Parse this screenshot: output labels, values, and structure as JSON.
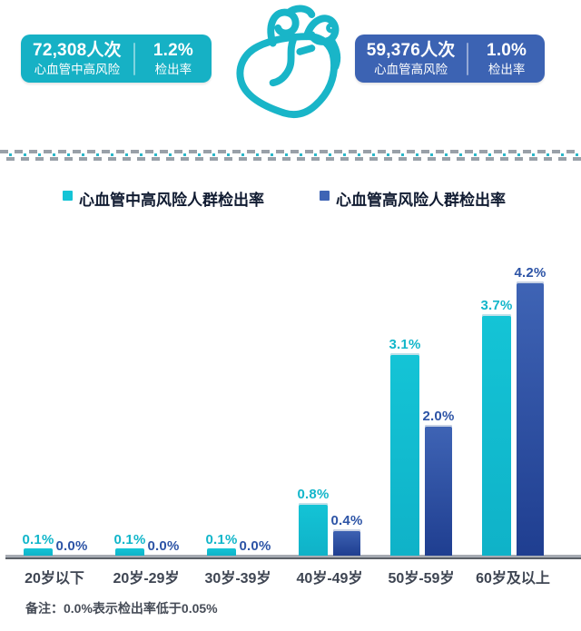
{
  "header": {
    "stats": [
      {
        "count": "72,308人次",
        "label": "心血管中高风险",
        "rate": "1.2%",
        "rate_label": "检出率",
        "bg_color": "#16b1c5"
      },
      {
        "count": "59,376人次",
        "label": "心血管高风险",
        "rate": "1.0%",
        "rate_label": "检出率",
        "bg_color": "#3c63b3"
      }
    ],
    "heart_icon": "anatomical-heart-outline",
    "heart_color": "#19b5c8"
  },
  "legend": {
    "items": [
      {
        "label": "心血管中高风险人群检出率",
        "color": "#14c4d6"
      },
      {
        "label": "心血管高风险人群检出率",
        "color": "#3f64b5"
      }
    ]
  },
  "chart_data": {
    "type": "bar",
    "categories": [
      "20岁以下",
      "20岁-29岁",
      "30岁-39岁",
      "40岁-49岁",
      "50岁-59岁",
      "60岁及以上"
    ],
    "series": [
      {
        "name": "心血管中高风险人群检出率",
        "color": "#14c4d6",
        "color_dark": "#0fb2c8",
        "label_color": "#12b6ca",
        "values": [
          0.1,
          0.1,
          0.1,
          0.8,
          3.1,
          3.7
        ]
      },
      {
        "name": "心血管高风险人群检出率",
        "color": "#3f64b5",
        "color_dark": "#1f3e90",
        "label_color": "#2d54a6",
        "values": [
          0.0,
          0.0,
          0.0,
          0.4,
          2.0,
          4.2
        ]
      }
    ],
    "unit": "%",
    "ylim": [
      0,
      4.5
    ],
    "grid": false,
    "legend_position": "top",
    "value_labels": true,
    "value_label_format": "one-decimal-percent"
  },
  "note": {
    "text": "备注：0.0%表示检出率低于0.05%"
  }
}
